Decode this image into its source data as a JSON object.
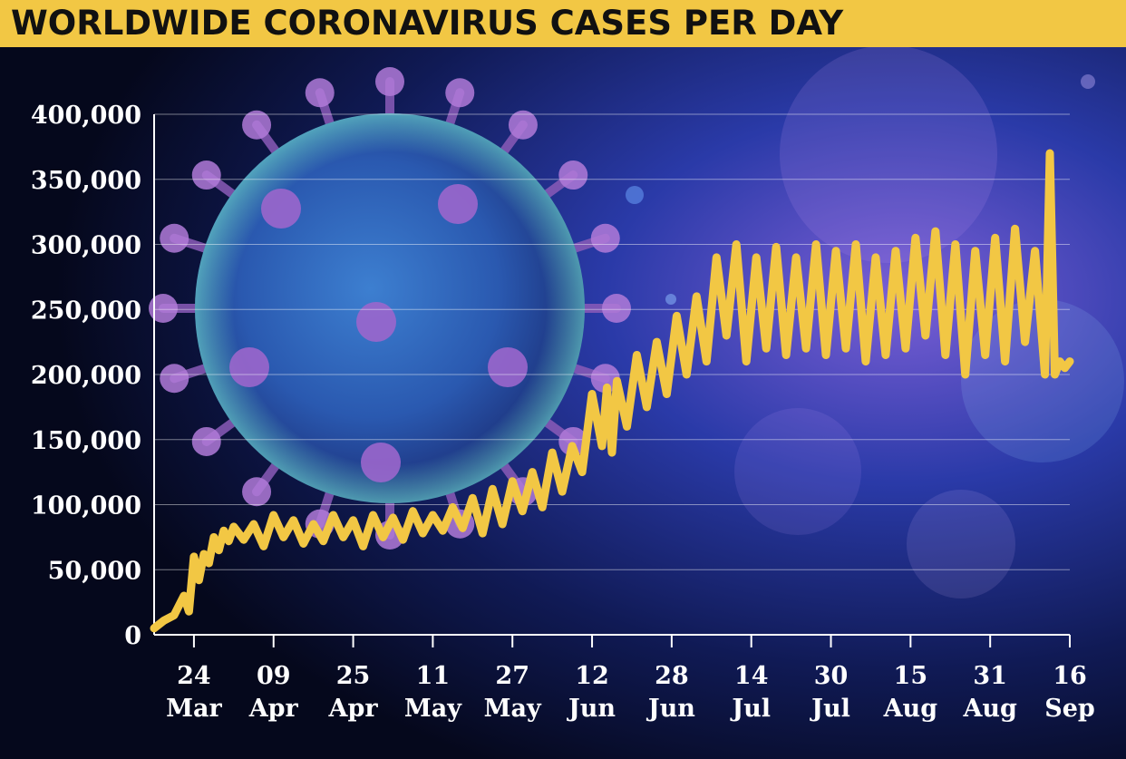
{
  "title": "WORLDWIDE CORONAVIRUS CASES PER DAY",
  "colors": {
    "title_bg": "#f2c744",
    "line": "#f2c744",
    "axis": "#ffffff"
  },
  "chart_data": {
    "type": "line",
    "title": "WORLDWIDE CORONAVIRUS CASES PER DAY",
    "xlabel": "",
    "ylabel": "",
    "ylim": [
      0,
      400000
    ],
    "yticks": [
      0,
      50000,
      100000,
      150000,
      200000,
      250000,
      300000,
      350000,
      400000
    ],
    "ytick_labels": [
      "0",
      "50,000",
      "100,000",
      "150,000",
      "200,000",
      "250,000",
      "300,000",
      "350,000",
      "400,000"
    ],
    "xlim": [
      "2020-03-16",
      "2020-09-16"
    ],
    "xticks": [
      "2020-03-24",
      "2020-04-09",
      "2020-04-25",
      "2020-05-11",
      "2020-05-27",
      "2020-06-12",
      "2020-06-28",
      "2020-07-14",
      "2020-07-30",
      "2020-08-15",
      "2020-08-31",
      "2020-09-16"
    ],
    "xtick_labels": [
      {
        "day": "24",
        "month": "Mar"
      },
      {
        "day": "09",
        "month": "Apr"
      },
      {
        "day": "25",
        "month": "Apr"
      },
      {
        "day": "11",
        "month": "May"
      },
      {
        "day": "27",
        "month": "May"
      },
      {
        "day": "12",
        "month": "Jun"
      },
      {
        "day": "28",
        "month": "Jun"
      },
      {
        "day": "14",
        "month": "Jul"
      },
      {
        "day": "30",
        "month": "Jul"
      },
      {
        "day": "15",
        "month": "Aug"
      },
      {
        "day": "31",
        "month": "Aug"
      },
      {
        "day": "16",
        "month": "Sep"
      }
    ],
    "grid": true,
    "series": [
      {
        "x": [
          "2020-03-16",
          "2020-03-18",
          "2020-03-20",
          "2020-03-22",
          "2020-03-23",
          "2020-03-24",
          "2020-03-25",
          "2020-03-26",
          "2020-03-27",
          "2020-03-28",
          "2020-03-29",
          "2020-03-30",
          "2020-03-31",
          "2020-04-01",
          "2020-04-03",
          "2020-04-05",
          "2020-04-07",
          "2020-04-09",
          "2020-04-11",
          "2020-04-13",
          "2020-04-15",
          "2020-04-17",
          "2020-04-19",
          "2020-04-21",
          "2020-04-23",
          "2020-04-25",
          "2020-04-27",
          "2020-04-29",
          "2020-05-01",
          "2020-05-03",
          "2020-05-05",
          "2020-05-07",
          "2020-05-09",
          "2020-05-11",
          "2020-05-13",
          "2020-05-15",
          "2020-05-17",
          "2020-05-19",
          "2020-05-21",
          "2020-05-23",
          "2020-05-25",
          "2020-05-27",
          "2020-05-29",
          "2020-05-31",
          "2020-06-02",
          "2020-06-04",
          "2020-06-06",
          "2020-06-08",
          "2020-06-10",
          "2020-06-12",
          "2020-06-14",
          "2020-06-15",
          "2020-06-16",
          "2020-06-17",
          "2020-06-19",
          "2020-06-21",
          "2020-06-23",
          "2020-06-25",
          "2020-06-27",
          "2020-06-29",
          "2020-07-01",
          "2020-07-03",
          "2020-07-05",
          "2020-07-07",
          "2020-07-09",
          "2020-07-11",
          "2020-07-13",
          "2020-07-15",
          "2020-07-17",
          "2020-07-19",
          "2020-07-21",
          "2020-07-23",
          "2020-07-25",
          "2020-07-27",
          "2020-07-29",
          "2020-07-31",
          "2020-08-02",
          "2020-08-04",
          "2020-08-06",
          "2020-08-08",
          "2020-08-10",
          "2020-08-12",
          "2020-08-14",
          "2020-08-16",
          "2020-08-18",
          "2020-08-20",
          "2020-08-22",
          "2020-08-24",
          "2020-08-26",
          "2020-08-28",
          "2020-08-30",
          "2020-09-01",
          "2020-09-03",
          "2020-09-05",
          "2020-09-07",
          "2020-09-09",
          "2020-09-11",
          "2020-09-12",
          "2020-09-13",
          "2020-09-14",
          "2020-09-15",
          "2020-09-16"
        ],
        "values": [
          5000,
          11000,
          15000,
          30000,
          18000,
          60000,
          42000,
          62000,
          55000,
          75000,
          65000,
          80000,
          72000,
          83000,
          73000,
          85000,
          68000,
          92000,
          75000,
          88000,
          70000,
          85000,
          72000,
          92000,
          75000,
          88000,
          68000,
          92000,
          75000,
          90000,
          73000,
          95000,
          78000,
          92000,
          80000,
          98000,
          82000,
          105000,
          78000,
          112000,
          85000,
          118000,
          95000,
          125000,
          98000,
          140000,
          110000,
          145000,
          125000,
          185000,
          145000,
          190000,
          140000,
          195000,
          160000,
          215000,
          175000,
          225000,
          185000,
          245000,
          200000,
          260000,
          210000,
          290000,
          230000,
          300000,
          210000,
          290000,
          220000,
          298000,
          215000,
          290000,
          220000,
          300000,
          215000,
          295000,
          220000,
          300000,
          210000,
          290000,
          215000,
          295000,
          220000,
          305000,
          230000,
          310000,
          215000,
          300000,
          200000,
          295000,
          215000,
          305000,
          210000,
          312000,
          225000,
          295000,
          200000,
          370000,
          200000,
          210000,
          205000,
          210000
        ]
      }
    ]
  }
}
